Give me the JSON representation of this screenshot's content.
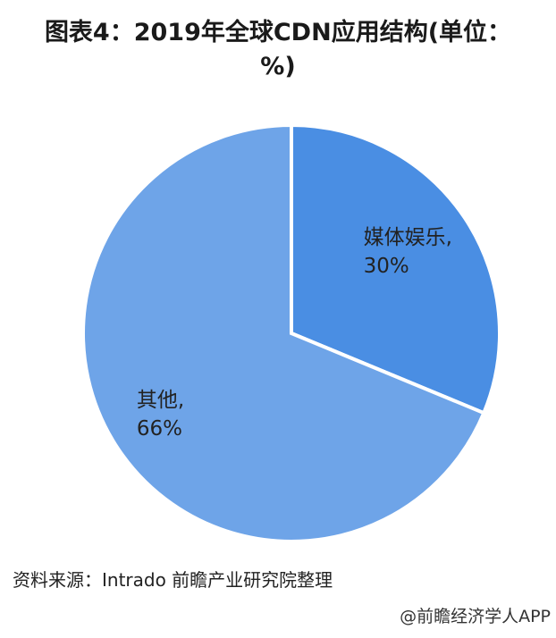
{
  "chart_data": {
    "type": "pie",
    "title": "图表4：2019年全球CDN应用结构(单位：%)",
    "values": [
      30,
      66
    ],
    "value_labels": [
      "媒体娱乐, 30%",
      "其他, 66%"
    ],
    "colors": [
      "#4a8ee3",
      "#6ea4e8"
    ]
  },
  "footer": {
    "source": "资料来源：Intrado 前瞻产业研究院整理",
    "watermark": "@前瞻经济学人APP"
  }
}
